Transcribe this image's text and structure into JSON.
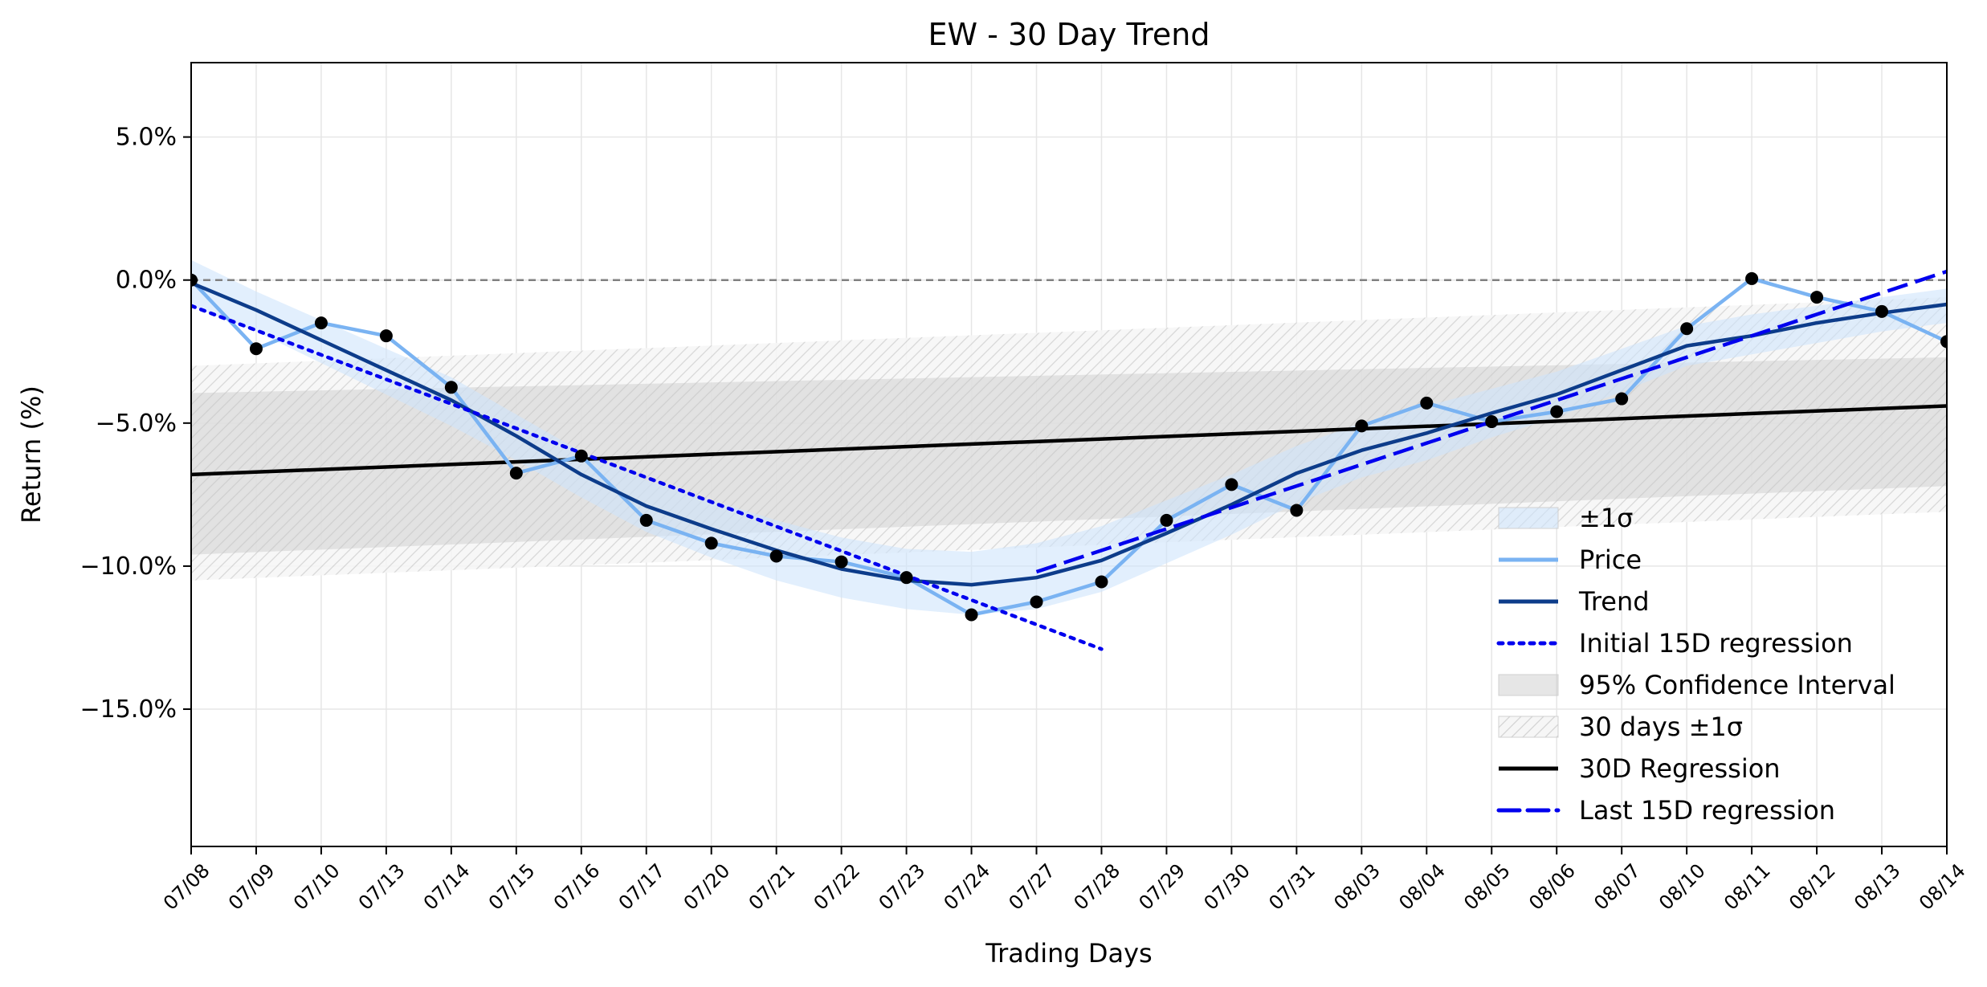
{
  "chart_data": {
    "type": "line",
    "title": "EW - 30 Day Trend",
    "xlabel": "Trading Days",
    "ylabel": "Return (%)",
    "ylim": [
      -19.8,
      7.6
    ],
    "y_ticks": [
      5.0,
      0.0,
      -5.0,
      -10.0,
      -15.0
    ],
    "y_tick_labels": [
      "5.0%",
      "0.0%",
      "−5.0%",
      "−10.0%",
      "−15.0%"
    ],
    "grid": true,
    "legend_position": "lower-right",
    "categories": [
      "07/08",
      "07/09",
      "07/10",
      "07/13",
      "07/14",
      "07/15",
      "07/16",
      "07/17",
      "07/20",
      "07/21",
      "07/22",
      "07/23",
      "07/24",
      "07/27",
      "07/28",
      "07/29",
      "07/30",
      "07/31",
      "08/03",
      "08/04",
      "08/05",
      "08/06",
      "08/07",
      "08/10",
      "08/11",
      "08/12",
      "08/13",
      "08/14"
    ],
    "series": [
      {
        "name": "Price",
        "color": "#7ab3f2",
        "values": [
          0.0,
          -2.4,
          -1.5,
          -1.95,
          -3.75,
          -6.75,
          -6.15,
          -8.4,
          -9.2,
          -9.65,
          -9.85,
          -10.4,
          -11.7,
          -11.25,
          -10.55,
          -8.4,
          -7.15,
          -8.05,
          -5.1,
          -4.3,
          -4.95,
          -4.6,
          -4.15,
          -1.7,
          0.05,
          -0.6,
          -1.1,
          -2.15
        ]
      },
      {
        "name": "Trend",
        "color": "#0d3c8a",
        "values": [
          -0.1,
          -1.05,
          -2.1,
          -3.15,
          -4.2,
          -5.45,
          -6.8,
          -7.9,
          -8.7,
          -9.45,
          -10.1,
          -10.5,
          -10.65,
          -10.4,
          -9.8,
          -8.85,
          -7.85,
          -6.75,
          -5.95,
          -5.35,
          -4.65,
          -4.0,
          -3.15,
          -2.3,
          -1.95,
          -1.5,
          -1.15,
          -0.85
        ]
      }
    ],
    "sigma_band": {
      "name": "±1σ",
      "color": "#ddeeff",
      "upper": [
        0.7,
        -0.4,
        -1.4,
        -2.4,
        -3.4,
        -4.7,
        -6.0,
        -7.0,
        -7.7,
        -8.4,
        -9.0,
        -9.4,
        -9.5,
        -9.2,
        -8.6,
        -7.7,
        -6.8,
        -5.8,
        -5.0,
        -4.4,
        -3.8,
        -3.2,
        -2.4,
        -1.6,
        -1.2,
        -0.9,
        -0.6,
        -0.3
      ],
      "lower": [
        -0.9,
        -1.8,
        -2.9,
        -4.0,
        -5.1,
        -6.3,
        -7.6,
        -8.8,
        -9.7,
        -10.5,
        -11.1,
        -11.5,
        -11.7,
        -11.5,
        -10.9,
        -9.9,
        -8.9,
        -7.8,
        -6.9,
        -6.3,
        -5.5,
        -4.8,
        -3.9,
        -3.0,
        -2.6,
        -2.2,
        -1.8,
        -1.5
      ]
    },
    "confidence_interval": {
      "name": "95% Confidence Interval",
      "upper": [
        -3.95,
        -2.7
      ],
      "lower": [
        -9.6,
        -7.2
      ]
    },
    "thirty_day_sigma": {
      "name": "30 days ±1σ",
      "upper": [
        -3.0,
        -0.6
      ],
      "lower": [
        -10.5,
        -8.1
      ]
    },
    "regression_30d": {
      "name": "30D Regression",
      "color": "#000000",
      "x_range": [
        "07/08",
        "08/14"
      ],
      "y": [
        -6.8,
        -4.4
      ]
    },
    "regression_initial_15d": {
      "name": "Initial 15D regression",
      "color": "#0000ee",
      "x_range": [
        "07/08",
        "07/28"
      ],
      "y": [
        -0.9,
        -12.9
      ]
    },
    "regression_last_15d": {
      "name": "Last 15D regression",
      "color": "#0000ee",
      "x_range": [
        "07/27",
        "08/14"
      ],
      "y": [
        -10.2,
        0.3
      ]
    },
    "zero_line": 0.0,
    "legend": [
      "±1σ",
      "Price",
      "Trend",
      "Initial 15D regression",
      "95% Confidence Interval",
      "30 days ±1σ",
      "30D Regression",
      "Last 15D regression"
    ]
  }
}
